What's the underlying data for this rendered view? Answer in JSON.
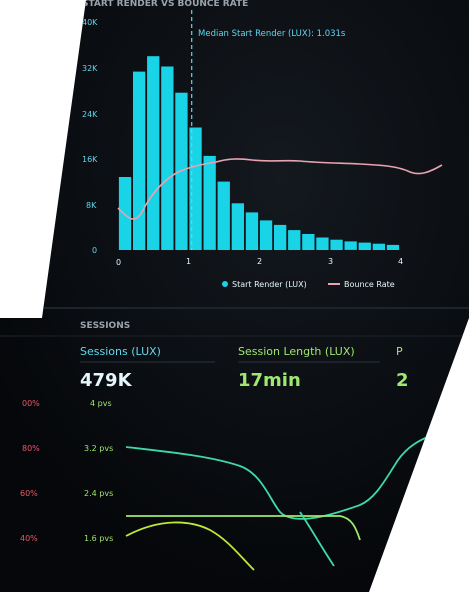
{
  "colors": {
    "background": "#ffffff",
    "screen": "#0a0d10",
    "cyan_bar": "#19d3e6",
    "bounce_line": "#e8a3b0",
    "cyan_text": "#5fd8ef",
    "green_text": "#9fe870",
    "session_teal": "#3fd9a8",
    "session_lime": "#bfe838",
    "axis_text": "#5fd8ef",
    "red_text": "#e8596a"
  },
  "chart1": {
    "title": "START RENDER VS BOUNCE RATE",
    "annotation": "Median Start Render (LUX): 1.031s",
    "y_ticks": [
      "40K",
      "32K",
      "24K",
      "16K",
      "8K",
      "0"
    ],
    "x_ticks": [
      "0",
      "1",
      "2",
      "3",
      "4"
    ],
    "legend": {
      "start_render": "Start Render (LUX)",
      "bounce_rate": "Bounce Rate"
    }
  },
  "chart_data": {
    "type": "bar",
    "title": "START RENDER VS BOUNCE RATE",
    "ylim": [
      0,
      40000
    ],
    "xlim": [
      0,
      4
    ],
    "bin_width": 0.2,
    "series": [
      {
        "name": "Start Render (LUX)",
        "type": "bar",
        "x": [
          0.1,
          0.3,
          0.5,
          0.7,
          0.9,
          1.1,
          1.3,
          1.5,
          1.7,
          1.9,
          2.1,
          2.3,
          2.5,
          2.7,
          2.9,
          3.1,
          3.3,
          3.5,
          3.7,
          3.9
        ],
        "values": [
          12800,
          31300,
          34000,
          32200,
          27600,
          21500,
          16500,
          12000,
          8200,
          6600,
          5200,
          4400,
          3500,
          2800,
          2200,
          1800,
          1500,
          1300,
          1100,
          900
        ]
      },
      {
        "name": "Bounce Rate",
        "type": "line"
      }
    ],
    "median_marker": {
      "label": "Median Start Render (LUX): 1.031s",
      "x": 1.031
    }
  },
  "sessions": {
    "heading": "SESSIONS",
    "metrics": [
      {
        "label": "Sessions (LUX)",
        "value": "479K"
      },
      {
        "label": "Session Length (LUX)",
        "value": "17min"
      }
    ],
    "y_ticks": [
      "4 pvs",
      "3.2 pvs",
      "2.4 pvs",
      "1.6 pvs"
    ],
    "left_ticks": [
      "00%",
      "80%",
      "60%",
      "40%"
    ]
  }
}
